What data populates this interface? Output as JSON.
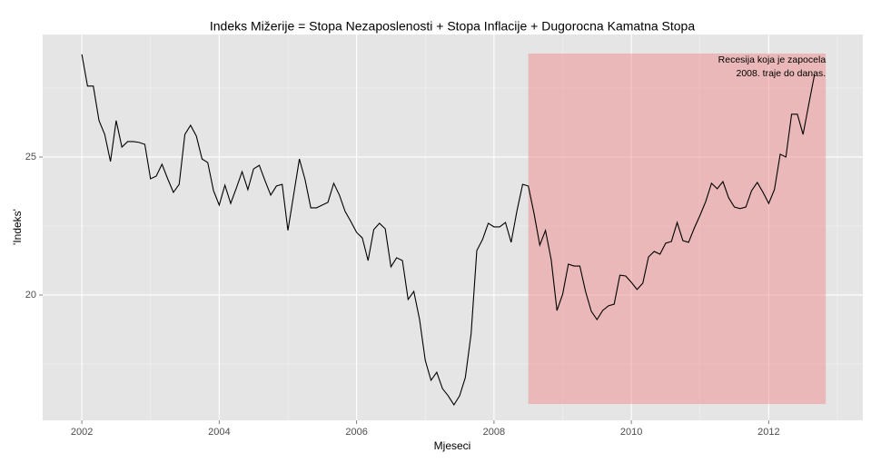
{
  "chart_data": {
    "type": "line",
    "title": "Indeks Mižerije = Stopa Nezaposlenosti + Stopa Inflacije + Dugorocna Kamatna Stopa",
    "xlabel": "Mjeseci",
    "ylabel": "'Indeks'",
    "color": "#000000",
    "x": [
      2002,
      2002.083,
      2002.167,
      2002.25,
      2002.333,
      2002.417,
      2002.5,
      2002.583,
      2002.667,
      2002.75,
      2002.833,
      2002.917,
      2003,
      2003.083,
      2003.167,
      2003.25,
      2003.333,
      2003.417,
      2003.5,
      2003.583,
      2003.667,
      2003.75,
      2003.833,
      2003.917,
      2004,
      2004.083,
      2004.167,
      2004.25,
      2004.333,
      2004.417,
      2004.5,
      2004.583,
      2004.667,
      2004.75,
      2004.833,
      2004.917,
      2005,
      2005.083,
      2005.167,
      2005.25,
      2005.333,
      2005.417,
      2005.5,
      2005.583,
      2005.667,
      2005.75,
      2005.833,
      2005.917,
      2006,
      2006.083,
      2006.167,
      2006.25,
      2006.333,
      2006.417,
      2006.5,
      2006.583,
      2006.667,
      2006.75,
      2006.833,
      2006.917,
      2007,
      2007.083,
      2007.167,
      2007.25,
      2007.333,
      2007.417,
      2007.5,
      2007.583,
      2007.667,
      2007.75,
      2007.833,
      2007.917,
      2008,
      2008.083,
      2008.167,
      2008.25,
      2008.333,
      2008.417,
      2008.5,
      2008.583,
      2008.667,
      2008.75,
      2008.833,
      2008.917,
      2009,
      2009.083,
      2009.167,
      2009.25,
      2009.333,
      2009.417,
      2009.5,
      2009.583,
      2009.667,
      2009.75,
      2009.833,
      2009.917,
      2010,
      2010.083,
      2010.167,
      2010.25,
      2010.333,
      2010.417,
      2010.5,
      2010.583,
      2010.667,
      2010.75,
      2010.833,
      2010.917,
      2011,
      2011.083,
      2011.167,
      2011.25,
      2011.333,
      2011.417,
      2011.5,
      2011.583,
      2011.667,
      2011.75,
      2011.833,
      2011.917,
      2012,
      2012.083,
      2012.167,
      2012.25,
      2012.333,
      2012.417,
      2012.5,
      2012.583,
      2012.667
    ],
    "values": [
      28.72,
      27.57,
      27.57,
      26.32,
      25.82,
      24.84,
      26.32,
      25.36,
      25.56,
      25.56,
      25.53,
      25.46,
      24.21,
      24.31,
      24.74,
      24.21,
      23.72,
      24.01,
      25.82,
      26.15,
      25.76,
      24.93,
      24.8,
      23.78,
      23.26,
      23.98,
      23.32,
      23.88,
      24.47,
      23.82,
      24.57,
      24.7,
      24.14,
      23.62,
      23.95,
      24.01,
      22.34,
      23.62,
      24.93,
      24.18,
      23.16,
      23.16,
      23.26,
      23.36,
      24.05,
      23.62,
      23.03,
      22.66,
      22.27,
      22.07,
      21.25,
      22.37,
      22.6,
      22.4,
      21.02,
      21.35,
      21.25,
      19.84,
      20.13,
      19.11,
      17.63,
      16.91,
      17.2,
      16.61,
      16.35,
      16.02,
      16.35,
      17.01,
      18.59,
      21.61,
      22.01,
      22.6,
      22.47,
      22.47,
      22.63,
      21.91,
      23.03,
      24.01,
      23.95,
      22.96,
      21.81,
      22.34,
      21.28,
      19.44,
      20.03,
      21.12,
      21.05,
      21.05,
      20.13,
      19.41,
      19.11,
      19.44,
      19.61,
      19.67,
      20.72,
      20.69,
      20.46,
      20.2,
      20.43,
      21.38,
      21.58,
      21.48,
      21.88,
      21.94,
      22.63,
      21.97,
      21.91,
      22.43,
      22.89,
      23.39,
      24.05,
      23.85,
      24.11,
      23.52,
      23.19,
      23.13,
      23.19,
      23.78,
      24.08,
      23.72,
      23.32,
      23.82,
      25.1,
      25,
      26.55,
      26.55,
      25.82,
      26.91,
      27.99
    ],
    "xlim": [
      2001.43,
      2013.37
    ],
    "ylim": [
      15.46,
      29.44
    ],
    "xticks": [
      2002,
      2004,
      2006,
      2008,
      2010,
      2012
    ],
    "xminorticks": [
      2003,
      2005,
      2007,
      2009,
      2011,
      2013
    ],
    "yticks": [
      20,
      25
    ],
    "yminorticks": [
      17.5,
      22.5,
      27.5
    ],
    "grid": true,
    "shade": {
      "xmin": 2008.5,
      "xmax": 2012.83,
      "ymin": 16.05,
      "ymax": 28.75,
      "color": "#f08080"
    },
    "annotation": [
      "Recesija koja je zapocela",
      "2008. traje do danas."
    ]
  }
}
